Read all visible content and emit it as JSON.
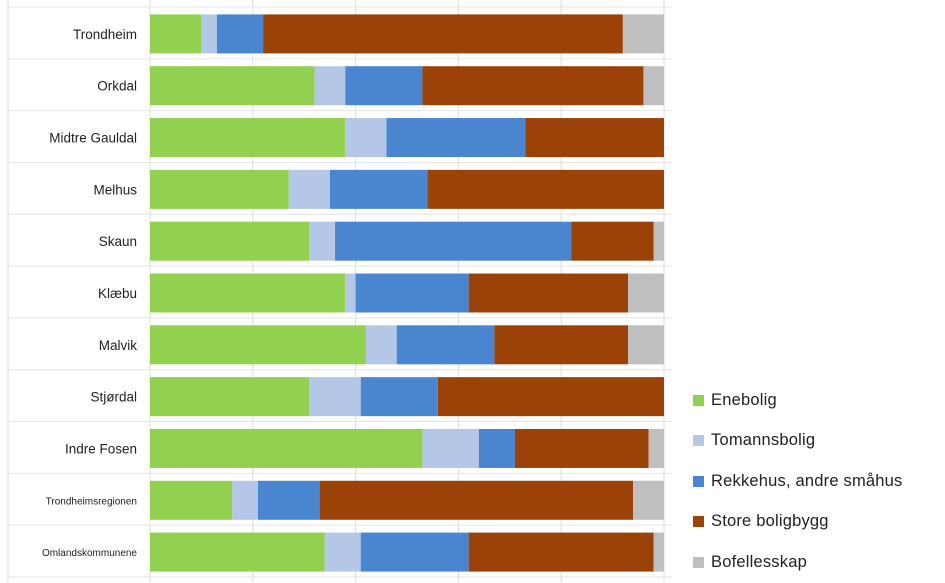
{
  "chart_data": {
    "type": "bar",
    "orientation": "horizontal",
    "stacked": true,
    "percent_stacked": true,
    "categories": [
      "Trondheim",
      "Orkdal",
      "Midtre Gauldal",
      "Melhus",
      "Skaun",
      "Klæbu",
      "Malvik",
      "Stjørdal",
      "Indre Fosen",
      "Trondheimsregionen",
      "Omlandskommunene"
    ],
    "series": [
      {
        "name": "Enebolig",
        "color": "#92d050",
        "values": [
          10,
          32,
          38,
          27,
          31,
          38,
          42,
          31,
          53,
          16,
          34
        ]
      },
      {
        "name": "Tomannsbolig",
        "color": "#b4c7e7",
        "values": [
          3,
          6,
          8,
          8,
          5,
          2,
          6,
          10,
          11,
          5,
          7
        ]
      },
      {
        "name": "Rekkehus, andre småhus",
        "color": "#4a86d0",
        "values": [
          9,
          15,
          27,
          19,
          46,
          22,
          19,
          15,
          7,
          12,
          21
        ]
      },
      {
        "name": "Store boligbygg",
        "color": "#9b4208",
        "values": [
          70,
          43,
          27,
          46,
          16,
          31,
          26,
          44,
          26,
          61,
          36
        ]
      },
      {
        "name": "Bofellesskap",
        "color": "#bfbfbf",
        "values": [
          8,
          4,
          0,
          0,
          2,
          7,
          7,
          0,
          3,
          6,
          2
        ]
      }
    ],
    "xlim": [
      0,
      100
    ],
    "grid": true,
    "legend_position": "bottom-right"
  }
}
